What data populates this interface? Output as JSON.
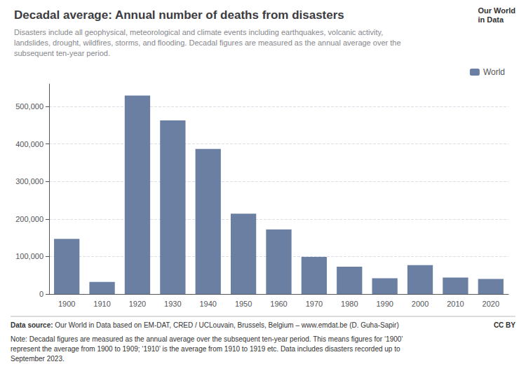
{
  "chart_data": {
    "type": "bar",
    "title": "Decadal average: Annual number of deaths from disasters",
    "subtitle": "Disasters include all geophysical, meteorological and climate events including earthquakes, volcanic activity,\nlandslides, drought, wildfires, storms, and flooding. Decadal figures are measured as the annual average over the\nsubsequent ten-year period.",
    "categories": [
      "1900",
      "1910",
      "1920",
      "1930",
      "1940",
      "1950",
      "1960",
      "1970",
      "1980",
      "1990",
      "2000",
      "2010",
      "2020"
    ],
    "series": [
      {
        "name": "World",
        "color": "#6b7fa3",
        "values": [
          147000,
          32000,
          529000,
          463000,
          387000,
          214000,
          172000,
          99000,
          73000,
          42000,
          77000,
          44000,
          40000
        ]
      }
    ],
    "ylim": [
      0,
      560000
    ],
    "yticks": [
      0,
      {
        "value": 100000,
        "label": "100,000"
      },
      {
        "value": 200000,
        "label": "200,000"
      },
      {
        "value": 300000,
        "label": "300,000"
      },
      {
        "value": 400000,
        "label": "400,000"
      },
      {
        "value": 500000,
        "label": "500,000"
      }
    ],
    "grid": true,
    "legend": "upper right",
    "annotations": [
      "Data source: Our World in Data based on EM-DAT, CRED / UCLouvain, Brussels, Belgium – www.emdat.be (D. Guha-Sapir)",
      "CC BY",
      "Note: Decadal figures are measured as the annual average over the subsequent ten-year period. This means figures for ‘1900’\nrepresent the average from 1900 to 1909; ‘1910’ is the average from 1910 to 1919 etc. Data includes disasters recorded up to\nSeptember 2023.",
      "Our World\nin Data"
    ]
  }
}
